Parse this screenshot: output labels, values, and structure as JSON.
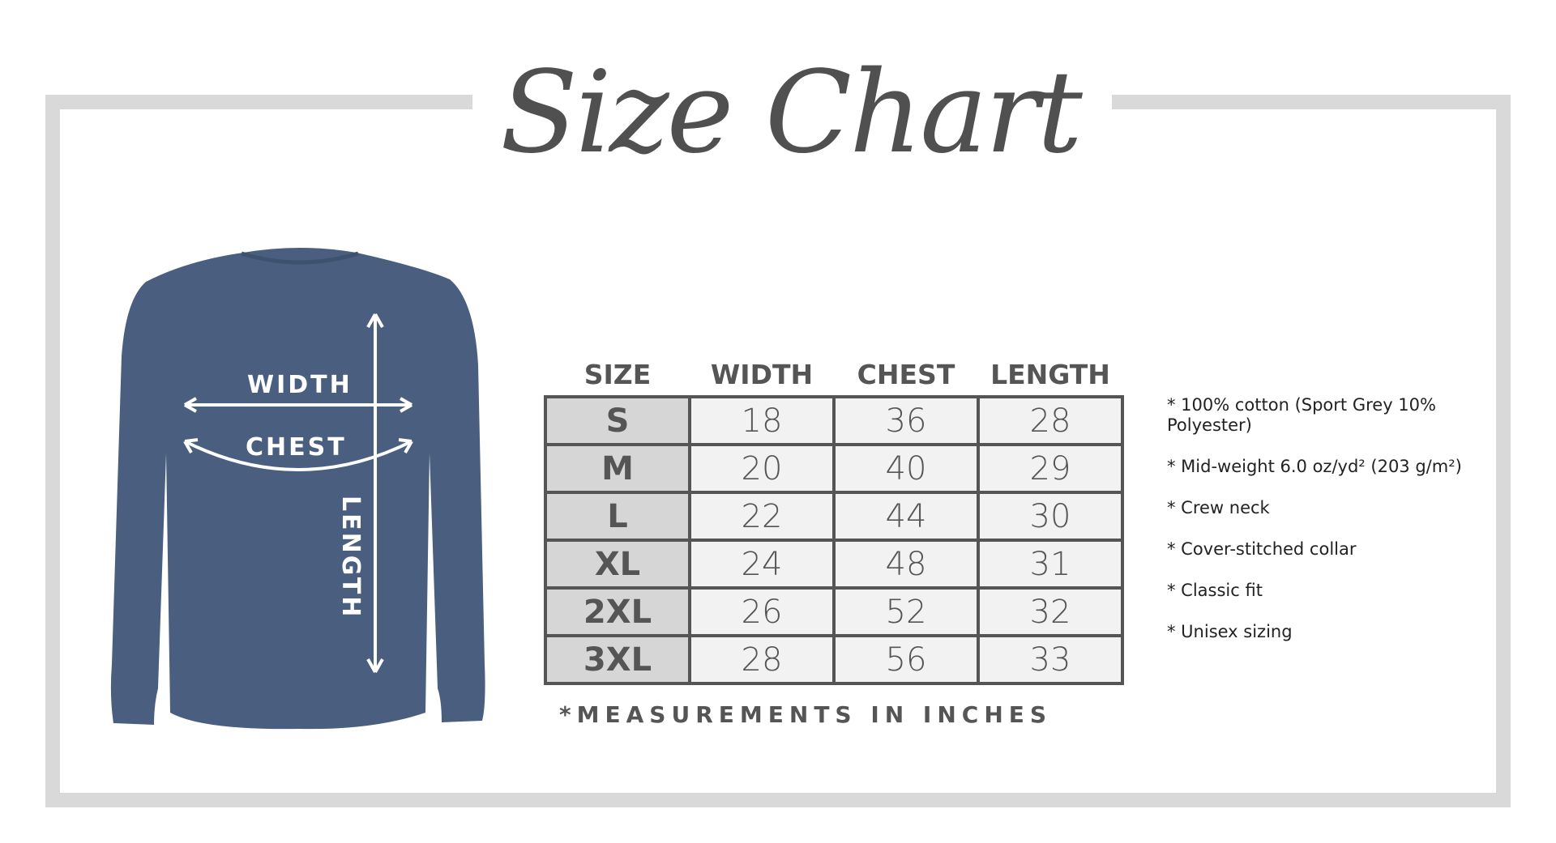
{
  "title": "Size Chart",
  "shirt": {
    "color": "#4a5f80",
    "labels": {
      "width": "WIDTH",
      "chest": "CHEST",
      "length": "LENGTH"
    }
  },
  "table": {
    "headers": [
      "SIZE",
      "WIDTH",
      "CHEST",
      "LENGTH"
    ],
    "rows": [
      [
        "S",
        "18",
        "36",
        "28"
      ],
      [
        "M",
        "20",
        "40",
        "29"
      ],
      [
        "L",
        "22",
        "44",
        "30"
      ],
      [
        "XL",
        "24",
        "48",
        "31"
      ],
      [
        "2XL",
        "26",
        "52",
        "32"
      ],
      [
        "3XL",
        "28",
        "56",
        "33"
      ]
    ]
  },
  "note": "*MEASUREMENTS IN INCHES",
  "features": [
    "* 100% cotton (Sport Grey 10% Polyester)",
    "* Mid-weight 6.0 oz/yd² (203 g/m²)",
    "* Crew neck",
    "* Cover-stitched collar",
    "* Classic fit",
    "* Unisex sizing"
  ]
}
